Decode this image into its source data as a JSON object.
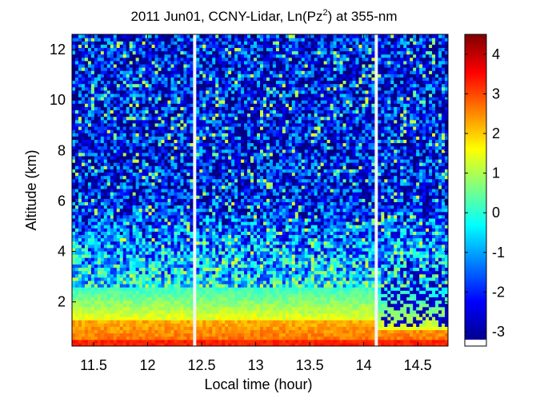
{
  "chart_data": {
    "type": "heatmap",
    "title": "2011 Jun01, CCNY-Lidar, Ln(Pz²) at 355-nm",
    "title_parts": [
      "2011 Jun01, CCNY-Lidar, Ln(Pz",
      "2",
      ") at 355-nm"
    ],
    "xlabel": "Local time (hour)",
    "ylabel": "Altitude (km)",
    "xlim": [
      11.3,
      14.78
    ],
    "ylim": [
      0.25,
      12.6
    ],
    "x_ticks": [
      11.5,
      12,
      12.5,
      13,
      13.5,
      14,
      14.5
    ],
    "x_tick_labels": [
      "11.5",
      "12",
      "12.5",
      "13",
      "13.5",
      "14",
      "14.5"
    ],
    "y_ticks": [
      2,
      4,
      6,
      8,
      10,
      12
    ],
    "y_tick_labels": [
      "2",
      "4",
      "6",
      "8",
      "10",
      "12"
    ],
    "colorbar": {
      "min": -3.2,
      "max": 4.5,
      "ticks": [
        -3,
        -2,
        -1,
        0,
        1,
        2,
        3,
        4
      ],
      "tick_labels": [
        "-3",
        "-2",
        "-1",
        "0",
        "1",
        "2",
        "3",
        "4"
      ],
      "colormap": "jet"
    },
    "data_gaps": [
      [
        12.41,
        12.46
      ],
      [
        14.09,
        14.13
      ]
    ],
    "grid": false
  }
}
